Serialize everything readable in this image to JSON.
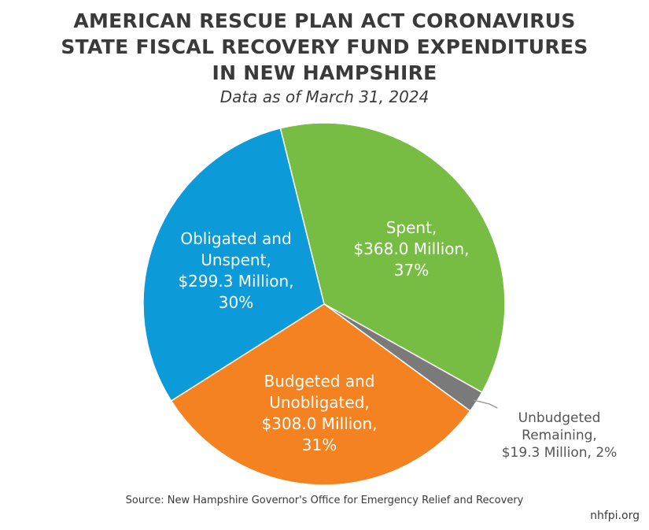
{
  "chart_data": {
    "type": "pie",
    "title": [
      "AMERICAN RESCUE PLAN ACT CORONAVIRUS",
      "STATE FISCAL RECOVERY FUND EXPENDITURES",
      "IN NEW HAMPSHIRE"
    ],
    "subtitle": "Data as of March 31, 2024",
    "slices": [
      {
        "name": "Spent",
        "value": 368.0,
        "percent": 37,
        "color": "#77bc43",
        "label_lines": [
          "Spent,",
          "$368.0 Million,",
          "37%"
        ]
      },
      {
        "name": "Unbudgeted Remaining",
        "value": 19.3,
        "percent": 2,
        "color": "#7a7a7a",
        "label_lines": [
          "Unbudgeted",
          "Remaining,",
          "$19.3 Million, 2%"
        ]
      },
      {
        "name": "Budgeted and Unobligated",
        "value": 308.0,
        "percent": 31,
        "color": "#f58220",
        "label_lines": [
          "Budgeted and",
          "Unobligated,",
          "$308.0 Million,",
          "31%"
        ]
      },
      {
        "name": "Obligated and Unspent",
        "value": 299.3,
        "percent": 30,
        "color": "#0c9bd8",
        "label_lines": [
          "Obligated and",
          "Unspent,",
          "$299.3 Million,",
          "30%"
        ]
      }
    ],
    "units": "Million USD"
  },
  "source": "Source: New Hampshire Governor's Office for Emergency Relief and Recovery",
  "site": "nhfpi.org"
}
